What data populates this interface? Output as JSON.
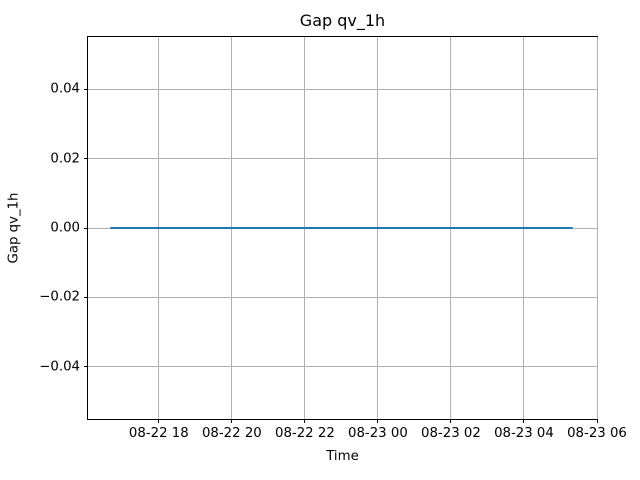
{
  "figure": {
    "title": "Gap qv_1h",
    "xlabel": "Time",
    "ylabel": "Gap qv_1h"
  },
  "colors": {
    "line": "#1f77b4",
    "grid": "#b0b0b0",
    "spine": "#000000",
    "background": "#ffffff",
    "text": "#000000"
  },
  "chart_data": {
    "type": "line",
    "title": "Gap qv_1h",
    "xlabel": "Time",
    "ylabel": "Gap qv_1h",
    "grid": true,
    "legend": false,
    "x_axis": {
      "tick_labels": [
        "08-22 18",
        "08-22 20",
        "08-22 22",
        "08-23 00",
        "08-23 02",
        "08-23 04",
        "08-23 06"
      ],
      "tick_hours": [
        18,
        20,
        22,
        24,
        26,
        28,
        30
      ],
      "xlim_hours": [
        16.06,
        30.0
      ]
    },
    "y_axis": {
      "tick_labels": [
        "−0.04",
        "−0.02",
        "0.00",
        "0.02",
        "0.04"
      ],
      "tick_values": [
        -0.04,
        -0.02,
        0.0,
        0.02,
        0.04
      ],
      "ylim": [
        -0.055,
        0.055
      ]
    },
    "series": [
      {
        "name": "Gap qv_1h",
        "color": "#1f77b4",
        "y_constant": 0.0,
        "x_start_hours": 16.65,
        "x_end_hours": 29.33
      }
    ]
  }
}
